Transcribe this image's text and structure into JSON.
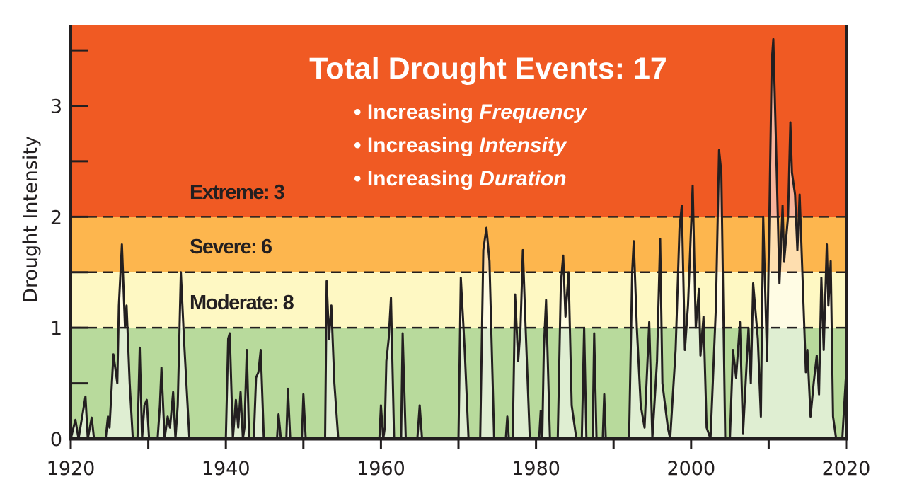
{
  "chart_data": {
    "type": "area",
    "title": "Total Drought Events: 17",
    "bullets": [
      {
        "prefix": "• Increasing ",
        "emph": "Frequency"
      },
      {
        "prefix": "• Increasing ",
        "emph": "Intensity"
      },
      {
        "prefix": "• Increasing ",
        "emph": "Duration"
      }
    ],
    "xlabel": "",
    "ylabel": "Drought Intensity",
    "xlim": [
      1920,
      2020
    ],
    "ylim": [
      0,
      3.73
    ],
    "x_ticks": [
      1920,
      1930,
      1940,
      1950,
      1960,
      1970,
      1980,
      1990,
      2000,
      2010,
      2020
    ],
    "x_tick_labels": [
      "1920",
      "1940",
      "1960",
      "1980",
      "2000",
      "2020"
    ],
    "y_ticks": [
      0,
      0.5,
      1,
      1.5,
      2,
      2.5,
      3,
      3.5
    ],
    "y_tick_labels": [
      "0",
      "1",
      "2",
      "3"
    ],
    "bands": [
      {
        "name": "Moderate",
        "from": 1,
        "to": 1.5,
        "color": "#fef8c3",
        "label": "Moderate: 8"
      },
      {
        "name": "Severe",
        "from": 1.5,
        "to": 2,
        "color": "#fdb64e",
        "label": "Severe: 6"
      },
      {
        "name": "Extreme",
        "from": 2,
        "to": 3.73,
        "color": "#f05a23",
        "label": "Extreme: 3"
      },
      {
        "name": "None",
        "from": 0,
        "to": 1,
        "color": "#b8da9c",
        "label": ""
      }
    ],
    "thresholds": [
      1,
      1.5,
      2
    ],
    "series": [
      {
        "name": "Drought Intensity",
        "color": "#231f20",
        "points": [
          [
            1920,
            0
          ],
          [
            1920.6,
            0.17
          ],
          [
            1921,
            0
          ],
          [
            1921.9,
            0.38
          ],
          [
            1922.2,
            0
          ],
          [
            1922.7,
            0.19
          ],
          [
            1923,
            0
          ],
          [
            1924.5,
            0
          ],
          [
            1924.8,
            0.2
          ],
          [
            1925,
            0.1
          ],
          [
            1925.5,
            0.76
          ],
          [
            1926,
            0.5
          ],
          [
            1926.2,
            1.2
          ],
          [
            1926.6,
            1.75
          ],
          [
            1927,
            1.0
          ],
          [
            1927.2,
            1.2
          ],
          [
            1927.6,
            0.5
          ],
          [
            1928,
            0
          ],
          [
            1928.6,
            0
          ],
          [
            1928.9,
            0.82
          ],
          [
            1929.2,
            0
          ],
          [
            1929.5,
            0.3
          ],
          [
            1929.8,
            0.35
          ],
          [
            1930.1,
            0
          ],
          [
            1931.2,
            0
          ],
          [
            1931.5,
            0.3
          ],
          [
            1931.7,
            0.64
          ],
          [
            1932.1,
            0
          ],
          [
            1932.5,
            0.2
          ],
          [
            1932.8,
            0.1
          ],
          [
            1933.2,
            0.42
          ],
          [
            1933.5,
            0
          ],
          [
            1933.8,
            0.3
          ],
          [
            1934.2,
            1.5
          ],
          [
            1934.6,
            0.9
          ],
          [
            1935.3,
            0
          ],
          [
            1940,
            0
          ],
          [
            1940.3,
            0.9
          ],
          [
            1940.5,
            0.95
          ],
          [
            1940.9,
            0
          ],
          [
            1941.3,
            0.35
          ],
          [
            1941.6,
            0.1
          ],
          [
            1941.9,
            0.42
          ],
          [
            1942.2,
            0
          ],
          [
            1942.4,
            0.1
          ],
          [
            1942.7,
            0.8
          ],
          [
            1943,
            0
          ],
          [
            1943.6,
            0
          ],
          [
            1943.9,
            0.55
          ],
          [
            1944.2,
            0.6
          ],
          [
            1944.5,
            0.8
          ],
          [
            1944.9,
            0
          ],
          [
            1946.6,
            0
          ],
          [
            1946.8,
            0.22
          ],
          [
            1947.1,
            0
          ],
          [
            1947.8,
            0
          ],
          [
            1948,
            0.45
          ],
          [
            1948.3,
            0
          ],
          [
            1949.8,
            0
          ],
          [
            1950,
            0.4
          ],
          [
            1950.3,
            0
          ],
          [
            1952.8,
            0
          ],
          [
            1953,
            1.42
          ],
          [
            1953.3,
            0.9
          ],
          [
            1953.6,
            1.2
          ],
          [
            1954,
            0.5
          ],
          [
            1954.5,
            0
          ],
          [
            1959.8,
            0
          ],
          [
            1960,
            0.3
          ],
          [
            1960.3,
            0
          ],
          [
            1960.5,
            0.1
          ],
          [
            1960.7,
            0.7
          ],
          [
            1961,
            0.9
          ],
          [
            1961.3,
            1.27
          ],
          [
            1961.7,
            0
          ],
          [
            1962.6,
            0
          ],
          [
            1962.8,
            0.95
          ],
          [
            1963.2,
            0
          ],
          [
            1964.7,
            0
          ],
          [
            1965,
            0.3
          ],
          [
            1965.3,
            0
          ],
          [
            1970,
            0
          ],
          [
            1970.3,
            1.45
          ],
          [
            1970.8,
            0.8
          ],
          [
            1971.3,
            0
          ],
          [
            1972.8,
            0
          ],
          [
            1973.2,
            1.7
          ],
          [
            1973.6,
            1.9
          ],
          [
            1974,
            1.6
          ],
          [
            1974.6,
            0
          ],
          [
            1976.1,
            0
          ],
          [
            1976.3,
            0.2
          ],
          [
            1976.5,
            0
          ],
          [
            1977,
            0
          ],
          [
            1977.3,
            1.3
          ],
          [
            1977.7,
            0.7
          ],
          [
            1978,
            1.0
          ],
          [
            1978.3,
            1.7
          ],
          [
            1978.6,
            1.1
          ],
          [
            1979.2,
            0
          ],
          [
            1980.4,
            0
          ],
          [
            1980.6,
            0.25
          ],
          [
            1980.8,
            0
          ],
          [
            1981,
            0.8
          ],
          [
            1981.3,
            1.25
          ],
          [
            1981.8,
            0
          ],
          [
            1982.8,
            0
          ],
          [
            1983.2,
            1.4
          ],
          [
            1983.5,
            1.65
          ],
          [
            1983.8,
            1.1
          ],
          [
            1984.2,
            1.5
          ],
          [
            1984.6,
            0.3
          ],
          [
            1985.2,
            0
          ],
          [
            1985.9,
            0
          ],
          [
            1986.2,
            1.0
          ],
          [
            1986.5,
            0
          ],
          [
            1987.3,
            0
          ],
          [
            1987.5,
            0.95
          ],
          [
            1987.8,
            0
          ],
          [
            1988.6,
            0
          ],
          [
            1988.8,
            0.4
          ],
          [
            1989,
            0
          ],
          [
            1992,
            0
          ],
          [
            1992.4,
            1.5
          ],
          [
            1992.6,
            1.78
          ],
          [
            1993,
            1.0
          ],
          [
            1993.5,
            0.3
          ],
          [
            1994,
            0.1
          ],
          [
            1994.6,
            1.05
          ],
          [
            1995,
            0
          ],
          [
            1995.6,
            0.7
          ],
          [
            1996,
            1.8
          ],
          [
            1996.3,
            0.5
          ],
          [
            1997,
            0.1
          ],
          [
            1997.3,
            0
          ],
          [
            1998,
            0.8
          ],
          [
            1998.5,
            1.9
          ],
          [
            1998.8,
            2.1
          ],
          [
            1999.2,
            0.8
          ],
          [
            1999.6,
            1.2
          ],
          [
            2000.2,
            2.28
          ],
          [
            2000.6,
            1.0
          ],
          [
            2001,
            1.35
          ],
          [
            2001.2,
            0.75
          ],
          [
            2001.6,
            1.1
          ],
          [
            2002,
            0.1
          ],
          [
            2002.5,
            0
          ],
          [
            2003.2,
            1.2
          ],
          [
            2003.6,
            2.6
          ],
          [
            2003.9,
            2.4
          ],
          [
            2004.4,
            0
          ],
          [
            2005,
            0
          ],
          [
            2005.4,
            0.8
          ],
          [
            2005.8,
            0.55
          ],
          [
            2006.3,
            1.05
          ],
          [
            2006.7,
            0.05
          ],
          [
            2007.4,
            1.0
          ],
          [
            2007.7,
            0.5
          ],
          [
            2008,
            1.4
          ],
          [
            2008.6,
            0.9
          ],
          [
            2009,
            0.2
          ],
          [
            2009.3,
            2.0
          ],
          [
            2009.8,
            0.7
          ],
          [
            2010.4,
            3.4
          ],
          [
            2010.6,
            3.6
          ],
          [
            2011,
            2.5
          ],
          [
            2011.4,
            1.4
          ],
          [
            2011.8,
            2.1
          ],
          [
            2012,
            1.6
          ],
          [
            2012.5,
            2.0
          ],
          [
            2012.8,
            2.85
          ],
          [
            2013,
            2.4
          ],
          [
            2013.4,
            2.2
          ],
          [
            2013.7,
            1.7
          ],
          [
            2014,
            2.2
          ],
          [
            2014.3,
            1.6
          ],
          [
            2014.8,
            0.6
          ],
          [
            2015,
            0.8
          ],
          [
            2015.4,
            0.2
          ],
          [
            2015.8,
            0.5
          ],
          [
            2016.2,
            0.75
          ],
          [
            2016.5,
            0.4
          ],
          [
            2016.8,
            1.45
          ],
          [
            2017.1,
            0.8
          ],
          [
            2017.5,
            1.75
          ],
          [
            2017.7,
            1.2
          ],
          [
            2018,
            1.6
          ],
          [
            2018.3,
            0.2
          ],
          [
            2018.7,
            0
          ],
          [
            2019.5,
            0
          ],
          [
            2020,
            0.6
          ]
        ]
      }
    ],
    "legend": "none",
    "grid": false
  }
}
